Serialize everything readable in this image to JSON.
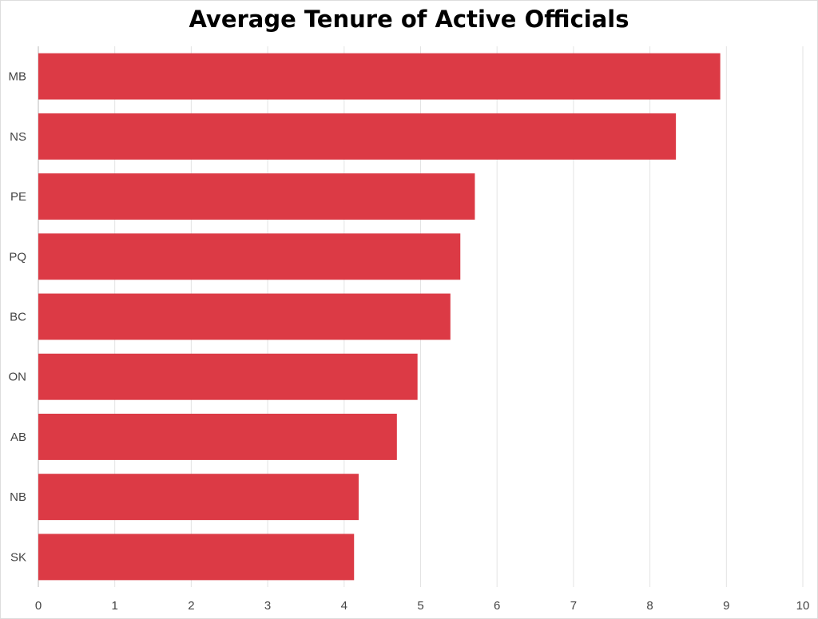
{
  "chart_data": {
    "type": "bar",
    "orientation": "horizontal",
    "title": "Average Tenure of Active Officials",
    "xlabel": "",
    "ylabel": "",
    "categories": [
      "MB",
      "NS",
      "PE",
      "PQ",
      "BC",
      "ON",
      "AB",
      "NB",
      "SK"
    ],
    "values": [
      8.92,
      8.34,
      5.71,
      5.52,
      5.39,
      4.96,
      4.69,
      4.19,
      4.13
    ],
    "xlim": [
      0,
      10
    ],
    "xticks": [
      "0",
      "1",
      "2",
      "3",
      "4",
      "5",
      "6",
      "7",
      "8",
      "9",
      "10"
    ],
    "grid": "vertical",
    "legend": "none",
    "bar_color": "#dc3a45"
  }
}
